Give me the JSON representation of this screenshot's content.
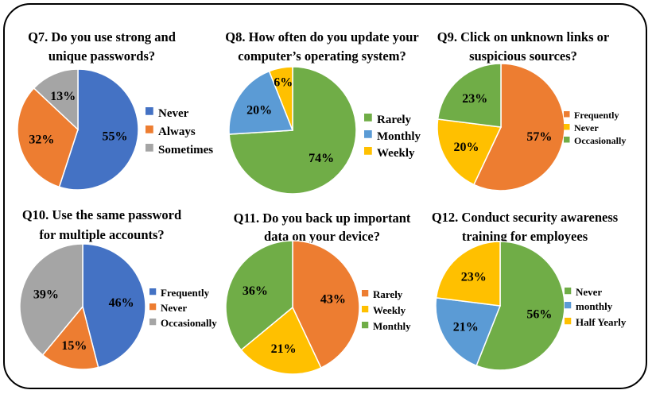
{
  "colors": {
    "blue": "#4472C4",
    "orange": "#ED7D31",
    "gray": "#A5A5A5",
    "green": "#70AD47",
    "lightblue": "#5B9BD5",
    "yellow": "#FFC000"
  },
  "chart_data": [
    {
      "type": "pie",
      "title": "Q7. Do you use strong and unique passwords?",
      "title_lines": [
        "Q7. Do you use strong and",
        "unique passwords?"
      ],
      "slices": [
        {
          "label": "Never",
          "value": 55,
          "text": "55%",
          "color": "#4472C4"
        },
        {
          "label": "Always",
          "value": 32,
          "text": "32%",
          "color": "#ED7D31"
        },
        {
          "label": "Sometimes",
          "value": 13,
          "text": "13%",
          "color": "#A5A5A5"
        }
      ],
      "legend_position": "right"
    },
    {
      "type": "pie",
      "title": "Q8. How often do you update your computer’s operating system?",
      "title_lines": [
        "Q8. How often do you update your",
        "computer’s operating system?"
      ],
      "slices": [
        {
          "label": "Rarely",
          "value": 74,
          "text": "74%",
          "color": "#70AD47"
        },
        {
          "label": "Monthly",
          "value": 20,
          "text": "20%",
          "color": "#5B9BD5"
        },
        {
          "label": "Weekly",
          "value": 6,
          "text": "6%",
          "color": "#FFC000"
        }
      ],
      "legend_position": "right"
    },
    {
      "type": "pie",
      "title": "Q9. Click on unknown links or suspicious sources?",
      "title_lines": [
        "Q9. Click on unknown links or",
        "suspicious sources?"
      ],
      "slices": [
        {
          "label": "Frequently",
          "value": 57,
          "text": "57%",
          "color": "#ED7D31"
        },
        {
          "label": "Never",
          "value": 20,
          "text": "20%",
          "color": "#FFC000"
        },
        {
          "label": "Occasionally",
          "value": 23,
          "text": "23%",
          "color": "#70AD47"
        }
      ],
      "legend_position": "right"
    },
    {
      "type": "pie",
      "title": "Q10. Use the same password for multiple accounts?",
      "title_lines": [
        "Q10. Use the same password",
        "for multiple accounts?"
      ],
      "slices": [
        {
          "label": "Frequently",
          "value": 46,
          "text": "46%",
          "color": "#4472C4"
        },
        {
          "label": "Never",
          "value": 15,
          "text": "15%",
          "color": "#ED7D31"
        },
        {
          "label": "Occasionally",
          "value": 39,
          "text": "39%",
          "color": "#A5A5A5"
        }
      ],
      "legend_position": "right"
    },
    {
      "type": "pie",
      "title": "Q11. Do you back up important data on your device?",
      "title_lines": [
        "Q11. Do you back up important",
        "data on your device?"
      ],
      "slices": [
        {
          "label": "Rarely",
          "value": 43,
          "text": "43%",
          "color": "#ED7D31"
        },
        {
          "label": "Weekly",
          "value": 21,
          "text": "21%",
          "color": "#FFC000"
        },
        {
          "label": "Monthly",
          "value": 36,
          "text": "36%",
          "color": "#70AD47"
        }
      ],
      "legend_position": "right"
    },
    {
      "type": "pie",
      "title": "Q12. Conduct security awareness training for employees",
      "title_lines": [
        "Q12. Conduct security awareness",
        "training for employees"
      ],
      "slices": [
        {
          "label": "Never",
          "value": 56,
          "text": "56%",
          "color": "#70AD47"
        },
        {
          "label": "monthly",
          "value": 21,
          "text": "21%",
          "color": "#5B9BD5"
        },
        {
          "label": "Half Yearly",
          "value": 23,
          "text": "23%",
          "color": "#FFC000"
        }
      ],
      "legend_position": "right"
    }
  ]
}
